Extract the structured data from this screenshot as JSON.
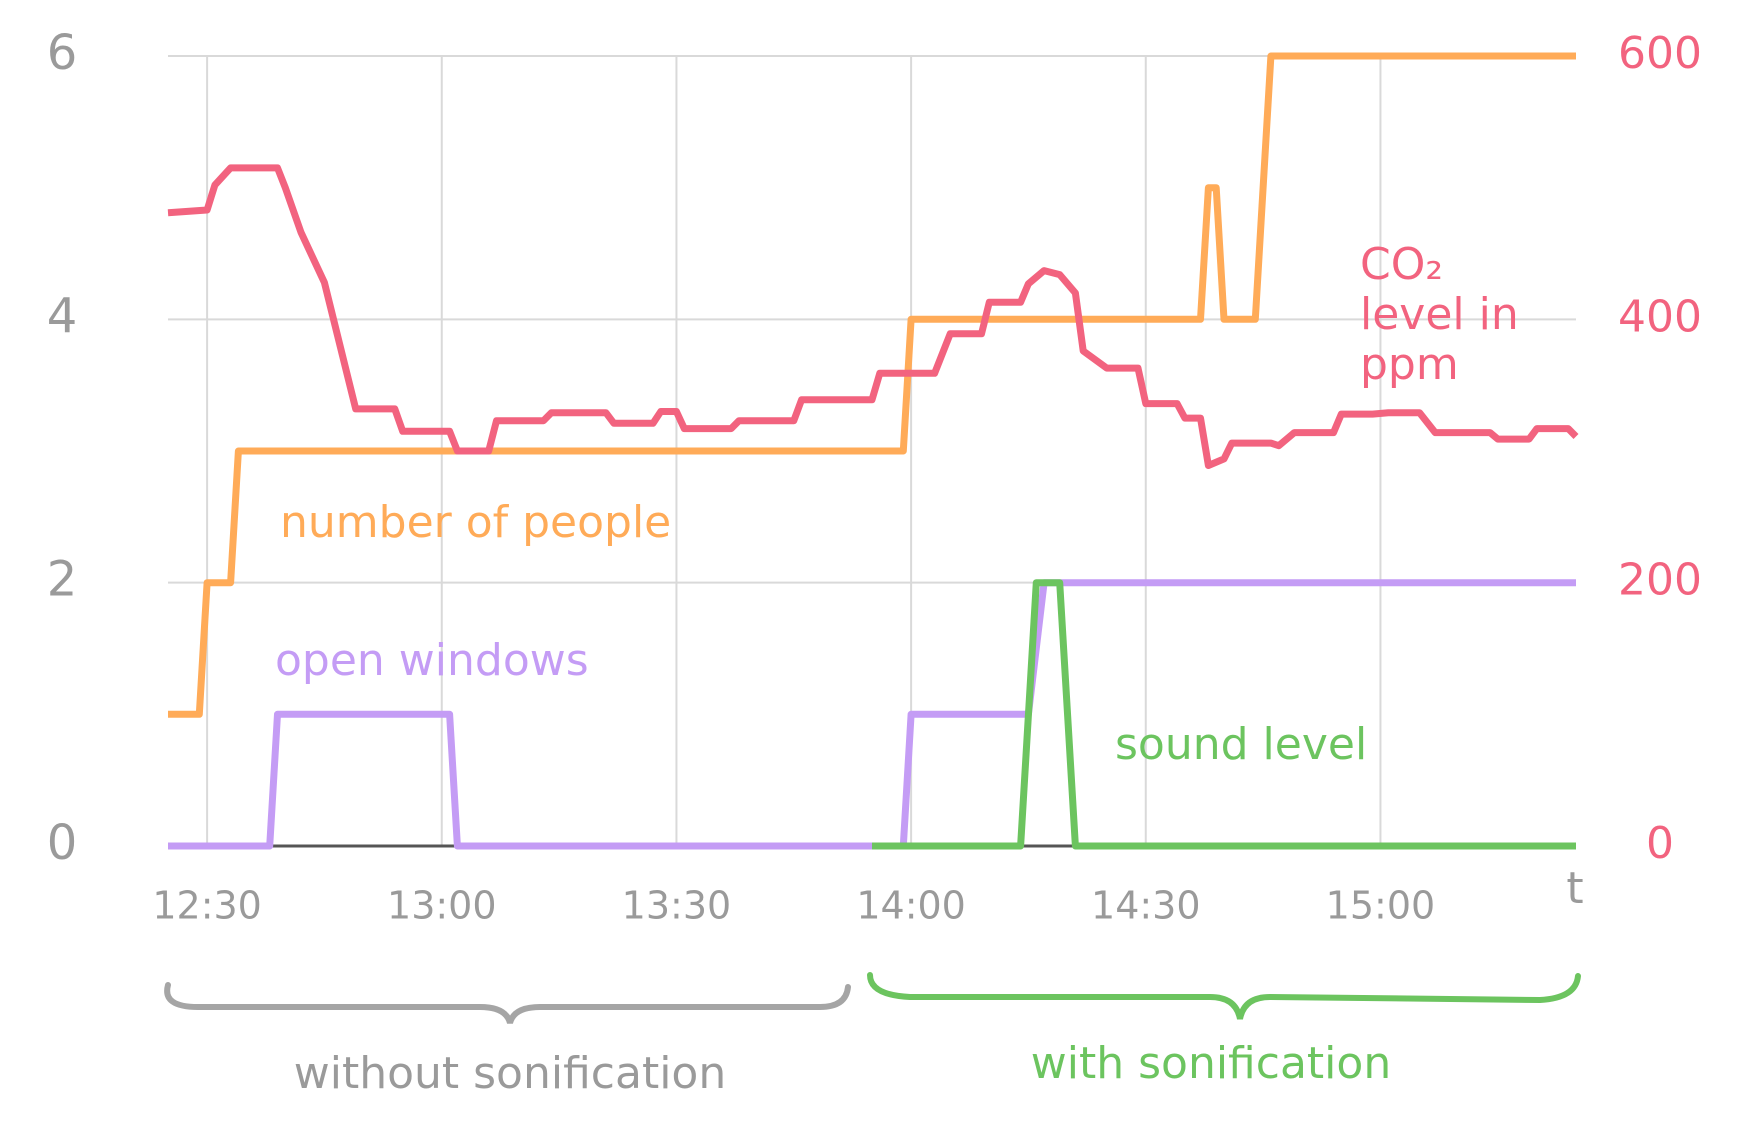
{
  "chart_data": {
    "type": "line",
    "xlim": [
      "12:25",
      "15:25"
    ],
    "xticks": [
      "12:30",
      "13:00",
      "13:30",
      "14:00",
      "14:30",
      "15:00"
    ],
    "x_label": "t",
    "ylim": [
      0,
      6
    ],
    "yticks": [
      0,
      2,
      4,
      6
    ],
    "y2lim": [
      0,
      600
    ],
    "y2ticks": [
      0,
      200,
      400,
      600
    ],
    "grid": true,
    "series": [
      {
        "name": "number of people",
        "color": "#ffab58",
        "x": [
          "12:25",
          "12:29",
          "12:30",
          "12:33",
          "12:34",
          "13:59",
          "14:00",
          "14:37",
          "14:38",
          "14:39",
          "14:40",
          "14:44",
          "14:46",
          "15:25"
        ],
        "values": [
          1,
          1,
          2,
          2,
          3,
          3,
          4,
          4,
          5,
          5,
          4,
          4,
          6,
          6
        ]
      },
      {
        "name": "CO₂ level in ppm",
        "color": "#f2637f",
        "axis": "y2",
        "x": [
          "12:25",
          "12:30",
          "12:31",
          "12:33",
          "12:39",
          "12:40",
          "12:42",
          "12:45",
          "12:49",
          "12:54",
          "12:55",
          "13:01",
          "13:02",
          "13:06",
          "13:07",
          "13:13",
          "13:14",
          "13:21",
          "13:22",
          "13:27",
          "13:28",
          "13:30",
          "13:31",
          "13:37",
          "13:38",
          "13:45",
          "13:46",
          "13:55",
          "13:56",
          "14:03",
          "14:05",
          "14:09",
          "14:10",
          "14:14",
          "14:15",
          "14:17",
          "14:19",
          "14:21",
          "14:22",
          "14:25",
          "14:29",
          "14:30",
          "14:34",
          "14:35",
          "14:37",
          "14:38",
          "14:40",
          "14:41",
          "14:46",
          "14:47",
          "14:49",
          "14:54",
          "14:55",
          "14:59",
          "15:01",
          "15:05",
          "15:07",
          "15:14",
          "15:15",
          "15:19",
          "15:20",
          "15:24",
          "15:25"
        ],
        "values": [
          481,
          483,
          502,
          515,
          515,
          500,
          466,
          428,
          332,
          332,
          315,
          315,
          300,
          300,
          323,
          323,
          329,
          329,
          321,
          321,
          330,
          330,
          317,
          317,
          323,
          323,
          339,
          339,
          359,
          359,
          389,
          389,
          413,
          413,
          427,
          437,
          434,
          420,
          376,
          363,
          363,
          336,
          336,
          325,
          325,
          289,
          294,
          306,
          306,
          304,
          314,
          314,
          328,
          328,
          329,
          329,
          314,
          314,
          309,
          309,
          317,
          317,
          311
        ]
      },
      {
        "name": "open windows",
        "color": "#c49cf5",
        "x": [
          "12:25",
          "12:38",
          "12:39",
          "13:01",
          "13:02",
          "13:59",
          "14:00",
          "14:15",
          "14:17",
          "15:25"
        ],
        "values": [
          0,
          0,
          1,
          1,
          0,
          0,
          1,
          1,
          2,
          2
        ]
      },
      {
        "name": "sound level",
        "color": "#6cc45f",
        "x": [
          "13:55",
          "14:14",
          "14:16",
          "14:19",
          "14:21",
          "15:25"
        ],
        "values": [
          0,
          0,
          2,
          2,
          0,
          0
        ]
      }
    ],
    "annotations": [
      "without sonification",
      "with sonification"
    ]
  }
}
